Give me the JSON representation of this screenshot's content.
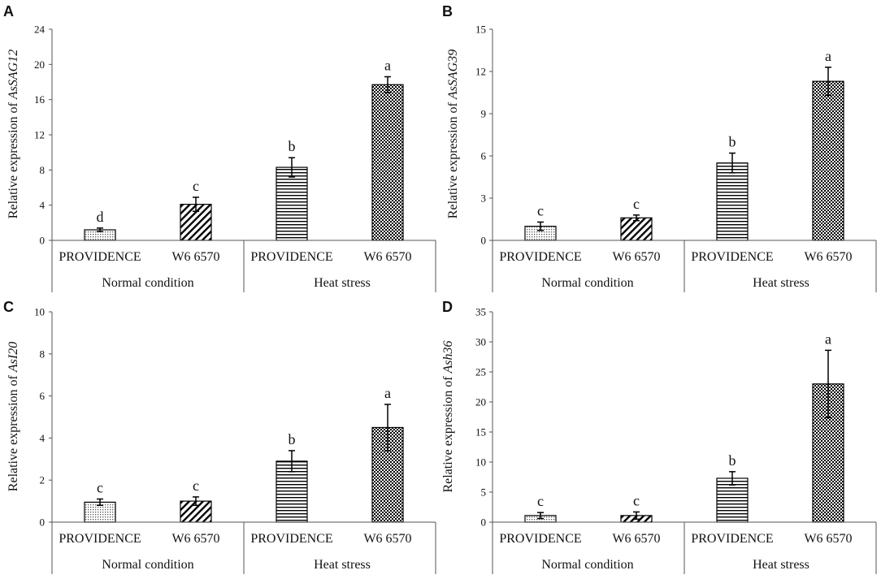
{
  "chart_data": [
    {
      "panel": "A",
      "type": "bar",
      "ylabel_prefix": "Relative expression of ",
      "ylabel_gene": "AsSAG12",
      "ylim": [
        0,
        24
      ],
      "yticks": [
        "0",
        "4",
        "8",
        "12",
        "16",
        "20",
        "24"
      ],
      "groups": [
        "Normal condition",
        "Heat stress"
      ],
      "categories": [
        "PROVIDENCE",
        "W6 6570",
        "PROVIDENCE",
        "W6 6570"
      ],
      "values": [
        1.2,
        4.1,
        8.3,
        17.7
      ],
      "errors": [
        0.2,
        0.8,
        1.1,
        0.9
      ],
      "letters": [
        "d",
        "c",
        "b",
        "a"
      ]
    },
    {
      "panel": "B",
      "type": "bar",
      "ylabel_prefix": "Relative expression of ",
      "ylabel_gene": "AsSAG39",
      "ylim": [
        0,
        15
      ],
      "yticks": [
        "0",
        "3",
        "6",
        "9",
        "12",
        "15"
      ],
      "groups": [
        "Normal condition",
        "Heat stress"
      ],
      "categories": [
        "PROVIDENCE",
        "W6 6570",
        "PROVIDENCE",
        "W6 6570"
      ],
      "values": [
        1.0,
        1.6,
        5.5,
        11.3
      ],
      "errors": [
        0.3,
        0.2,
        0.7,
        1.0
      ],
      "letters": [
        "c",
        "c",
        "b",
        "a"
      ]
    },
    {
      "panel": "C",
      "type": "bar",
      "ylabel_prefix": "Relative expression of ",
      "ylabel_gene": "AsI20",
      "ylim": [
        0,
        10
      ],
      "yticks": [
        "0",
        "2",
        "4",
        "6",
        "8",
        "10"
      ],
      "groups": [
        "Normal condition",
        "Heat stress"
      ],
      "categories": [
        "PROVIDENCE",
        "W6 6570",
        "PROVIDENCE",
        "W6 6570"
      ],
      "values": [
        0.95,
        1.0,
        2.9,
        4.5
      ],
      "errors": [
        0.15,
        0.2,
        0.5,
        1.1
      ],
      "letters": [
        "c",
        "c",
        "b",
        "a"
      ]
    },
    {
      "panel": "D",
      "type": "bar",
      "ylabel_prefix": "Relative expression of ",
      "ylabel_gene": "Ash36",
      "ylim": [
        0,
        35
      ],
      "yticks": [
        "0",
        "5",
        "10",
        "15",
        "20",
        "25",
        "30",
        "35"
      ],
      "groups": [
        "Normal condition",
        "Heat stress"
      ],
      "categories": [
        "PROVIDENCE",
        "W6 6570",
        "PROVIDENCE",
        "W6 6570"
      ],
      "values": [
        1.1,
        1.1,
        7.3,
        23.0
      ],
      "errors": [
        0.5,
        0.6,
        1.1,
        5.6
      ],
      "letters": [
        "c",
        "c",
        "b",
        "a"
      ]
    }
  ],
  "colors": {
    "ink": "#000000",
    "axis": "#555555",
    "dot_fill": "#bfbfbf"
  }
}
